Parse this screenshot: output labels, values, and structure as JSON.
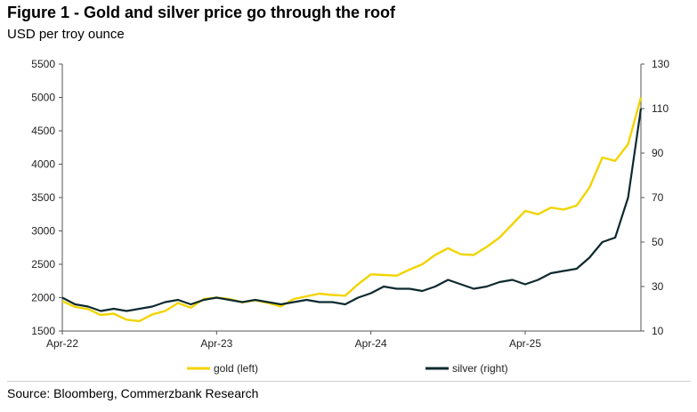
{
  "header": {
    "title": "Figure 1 - Gold and silver price go through the roof",
    "subtitle": "USD per troy ounce"
  },
  "footer": {
    "source": "Source: Bloomberg, Commerzbank Research"
  },
  "chart_data": {
    "type": "line",
    "title": "Figure 1 - Gold and silver price go through the roof",
    "subtitle": "USD per troy ounce",
    "x_ticks": [
      "Apr-22",
      "Apr-23",
      "Apr-24",
      "Apr-25"
    ],
    "x_range": [
      "2022-04",
      "2026-01"
    ],
    "left_axis": {
      "ylim": [
        1500,
        5500
      ],
      "ticks": [
        "1500",
        "2000",
        "2500",
        "3000",
        "3500",
        "4000",
        "4500",
        "5000",
        "5500"
      ]
    },
    "right_axis": {
      "ylim": [
        10,
        130
      ],
      "ticks": [
        "10",
        "30",
        "50",
        "70",
        "90",
        "110",
        "130"
      ]
    },
    "grid": false,
    "legend_position": "bottom",
    "series": [
      {
        "name": "gold (left)",
        "axis": "left",
        "color": "#f2d400",
        "x": [
          "2022-04",
          "2022-05",
          "2022-06",
          "2022-07",
          "2022-08",
          "2022-09",
          "2022-10",
          "2022-11",
          "2022-12",
          "2023-01",
          "2023-02",
          "2023-03",
          "2023-04",
          "2023-05",
          "2023-06",
          "2023-07",
          "2023-08",
          "2023-09",
          "2023-10",
          "2023-11",
          "2023-12",
          "2024-01",
          "2024-02",
          "2024-03",
          "2024-04",
          "2024-05",
          "2024-06",
          "2024-07",
          "2024-08",
          "2024-09",
          "2024-10",
          "2024-11",
          "2024-12",
          "2025-01",
          "2025-02",
          "2025-03",
          "2025-04",
          "2025-05",
          "2025-06",
          "2025-07",
          "2025-08",
          "2025-09",
          "2025-10",
          "2025-11",
          "2025-12",
          "2026-01"
        ],
        "values": [
          1950,
          1860,
          1830,
          1740,
          1760,
          1670,
          1650,
          1750,
          1800,
          1920,
          1850,
          1980,
          2000,
          1980,
          1930,
          1960,
          1920,
          1870,
          1980,
          2020,
          2060,
          2040,
          2030,
          2200,
          2350,
          2340,
          2330,
          2420,
          2500,
          2640,
          2740,
          2650,
          2640,
          2760,
          2900,
          3100,
          3300,
          3250,
          3350,
          3320,
          3380,
          3650,
          4100,
          4050,
          4300,
          5000
        ]
      },
      {
        "name": "silver (right)",
        "axis": "right",
        "color": "#0d2a2f",
        "x": [
          "2022-04",
          "2022-05",
          "2022-06",
          "2022-07",
          "2022-08",
          "2022-09",
          "2022-10",
          "2022-11",
          "2022-12",
          "2023-01",
          "2023-02",
          "2023-03",
          "2023-04",
          "2023-05",
          "2023-06",
          "2023-07",
          "2023-08",
          "2023-09",
          "2023-10",
          "2023-11",
          "2023-12",
          "2024-01",
          "2024-02",
          "2024-03",
          "2024-04",
          "2024-05",
          "2024-06",
          "2024-07",
          "2024-08",
          "2024-09",
          "2024-10",
          "2024-11",
          "2024-12",
          "2025-01",
          "2025-02",
          "2025-03",
          "2025-04",
          "2025-05",
          "2025-06",
          "2025-07",
          "2025-08",
          "2025-09",
          "2025-10",
          "2025-11",
          "2025-12",
          "2026-01"
        ],
        "values": [
          25,
          22,
          21,
          19,
          20,
          19,
          20,
          21,
          23,
          24,
          22,
          24,
          25,
          24,
          23,
          24,
          23,
          22,
          23,
          24,
          23,
          23,
          22,
          25,
          27,
          30,
          29,
          29,
          28,
          30,
          33,
          31,
          29,
          30,
          32,
          33,
          31,
          33,
          36,
          37,
          38,
          43,
          50,
          52,
          70,
          110
        ]
      }
    ]
  }
}
